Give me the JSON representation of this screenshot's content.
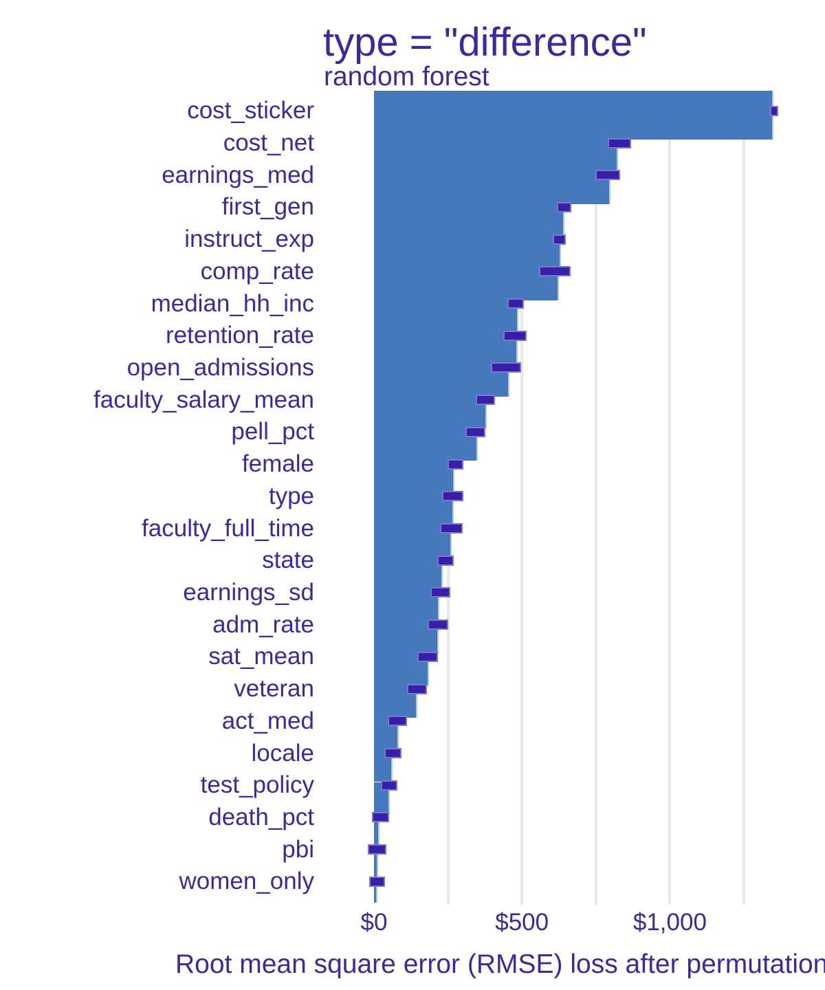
{
  "title": "type = \"difference\"",
  "subtitle": "random forest",
  "x_axis": {
    "label": "Root mean square error (RMSE) loss after permutations",
    "tick_labels": [
      "$0",
      "$500",
      "$1,000"
    ],
    "tick_values": [
      0,
      500,
      1000
    ],
    "gridline_values": [
      250,
      500,
      750,
      1000,
      1250
    ]
  },
  "colors": {
    "bar_fill": "#4678bc",
    "bar_edge": "#b3c7e4",
    "box_fill": "#371fa8",
    "box_border": "#7e74d2",
    "text": "#3e28a0",
    "gridline": "#e8e8eb",
    "background": "#ffffff"
  },
  "chart_data": {
    "type": "bar",
    "orientation": "horizontal",
    "title": "type = \"difference\"",
    "subtitle": "random forest",
    "xlabel": "Root mean square error (RMSE) loss after permutations",
    "ylabel": "",
    "xlim": [
      0,
      1524
    ],
    "grid": "vertical",
    "legend": "none",
    "categories": [
      "cost_sticker",
      "cost_net",
      "earnings_med",
      "first_gen",
      "instruct_exp",
      "comp_rate",
      "median_hh_inc",
      "retention_rate",
      "open_admissions",
      "faculty_salary_mean",
      "pell_pct",
      "female",
      "type",
      "faculty_full_time",
      "state",
      "earnings_sd",
      "adm_rate",
      "sat_mean",
      "veteran",
      "act_med",
      "locale",
      "test_policy",
      "death_pct",
      "pbi",
      "women_only"
    ],
    "series": [
      {
        "name": "RMSE loss after permutations (bar, $)",
        "values": [
          1345,
          820,
          795,
          638,
          628,
          621,
          483,
          482,
          453,
          376,
          347,
          268,
          266,
          259,
          227,
          216,
          214,
          182,
          141,
          80,
          58,
          48,
          15,
          9,
          7
        ]
      },
      {
        "name": "permutation spread box lower ($)",
        "values": [
          1338,
          791,
          749,
          617,
          604,
          557,
          451,
          436,
          396,
          343,
          310,
          249,
          230,
          222,
          214,
          191,
          182,
          147,
          111,
          46,
          36,
          24,
          -6,
          -20,
          -16
        ]
      },
      {
        "name": "permutation spread box upper ($)",
        "values": [
          1367,
          870,
          831,
          666,
          649,
          664,
          506,
          515,
          498,
          408,
          376,
          303,
          302,
          300,
          269,
          258,
          251,
          217,
          178,
          112,
          92,
          80,
          52,
          42,
          38
        ]
      }
    ]
  }
}
